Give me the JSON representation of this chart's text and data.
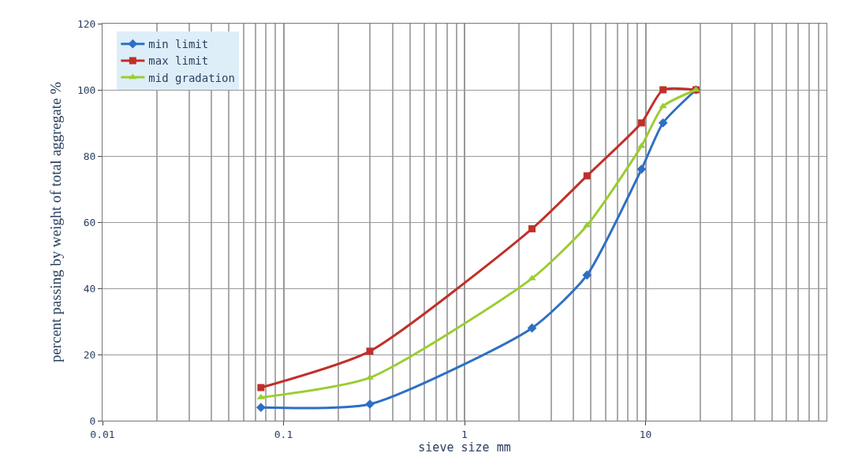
{
  "chart_data": {
    "type": "line",
    "xlabel": "sieve size mm",
    "ylabel": "percent passing by weight of total aggregate %",
    "x": [
      0.075,
      0.3,
      2.36,
      4.75,
      9.5,
      12.5,
      19
    ],
    "series": [
      {
        "name": "min limit",
        "color": "#2e6fc4",
        "marker": "diamond",
        "values": [
          4,
          5,
          28,
          44,
          76,
          90,
          100
        ]
      },
      {
        "name": "max limit",
        "color": "#c0302a",
        "marker": "square",
        "values": [
          10,
          21,
          58,
          74,
          90,
          100,
          100
        ]
      },
      {
        "name": "mid gradation",
        "color": "#9acd32",
        "marker": "triangle",
        "values": [
          7,
          13,
          43,
          59,
          83,
          95,
          100
        ]
      }
    ],
    "log": "x",
    "xlim": [
      0.01,
      100
    ],
    "xticks": [
      0.01,
      0.1,
      1,
      10
    ],
    "ylim": [
      0,
      120
    ],
    "yticks": [
      0,
      20,
      40,
      60,
      80,
      100,
      120
    ],
    "grid": true,
    "legend": "top left",
    "line_style": "solid"
  }
}
